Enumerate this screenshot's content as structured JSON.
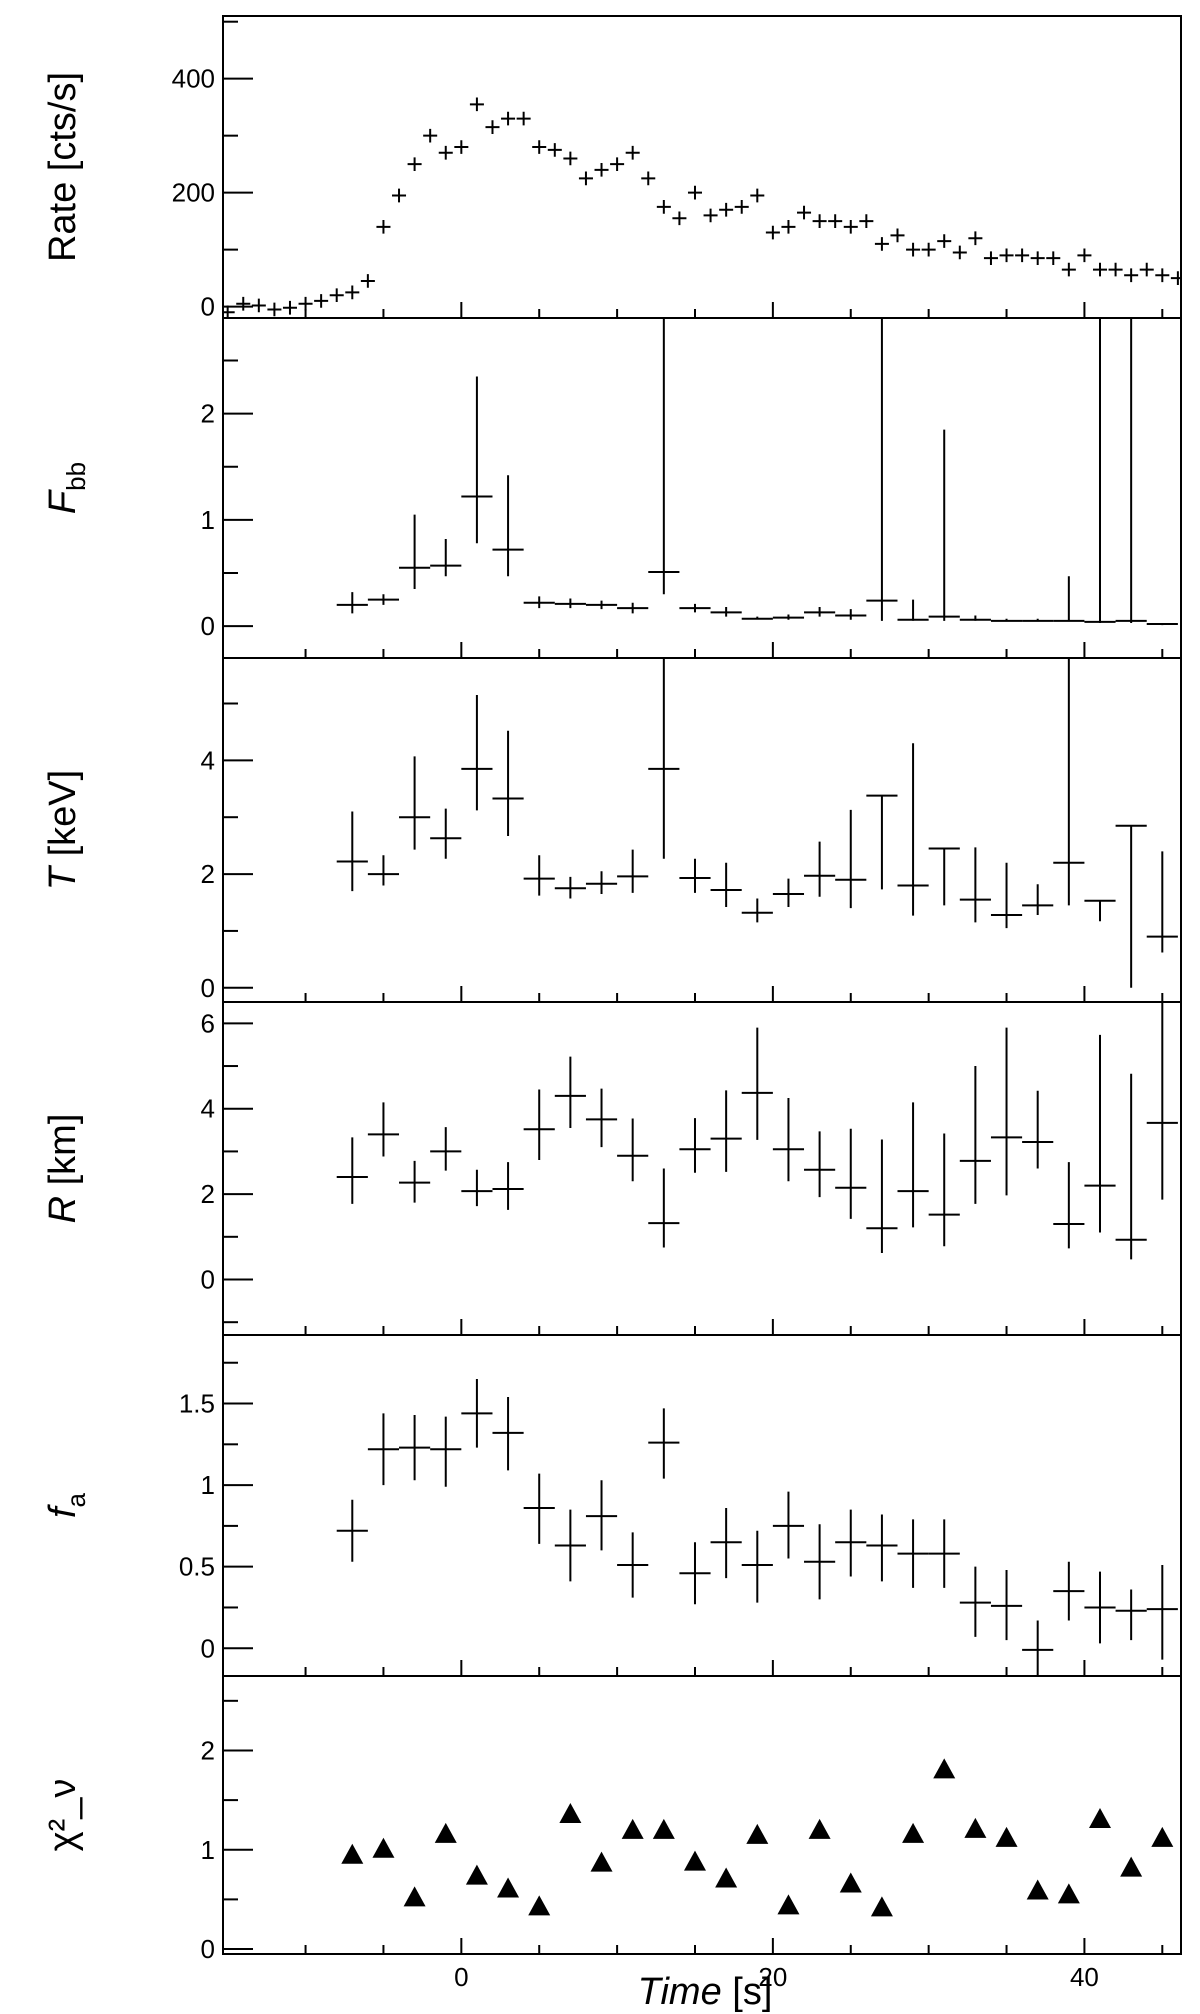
{
  "chart_data": [
    {
      "type": "scatter",
      "panel": "rate",
      "ylabel": "Rate [cts/s]",
      "ylim": [
        -20,
        510
      ],
      "yticks": [
        0,
        200,
        400
      ],
      "series": [
        {
          "marker": "cross",
          "x": [
            -15,
            -14,
            -13,
            -12,
            -11,
            -10,
            -9,
            -8,
            -7,
            -6,
            -5,
            -4,
            -3,
            -2,
            -1,
            0,
            1,
            2,
            3,
            4,
            5,
            6,
            7,
            8,
            9,
            10,
            11,
            12,
            13,
            14,
            15,
            16,
            17,
            18,
            19,
            20,
            21,
            22,
            23,
            24,
            25,
            26,
            27,
            28,
            29,
            30,
            31,
            32,
            33,
            34,
            35,
            36,
            37,
            38,
            39,
            40,
            41,
            42,
            43,
            44,
            45,
            46
          ],
          "y": [
            -10,
            5,
            2,
            -5,
            -2,
            5,
            10,
            20,
            25,
            45,
            140,
            195,
            250,
            300,
            270,
            280,
            355,
            315,
            330,
            330,
            280,
            275,
            260,
            225,
            240,
            250,
            270,
            225,
            175,
            155,
            200,
            160,
            170,
            175,
            195,
            130,
            140,
            165,
            150,
            150,
            140,
            150,
            110,
            125,
            100,
            100,
            115,
            95,
            120,
            85,
            90,
            90,
            85,
            85,
            65,
            90,
            65,
            65,
            55,
            65,
            55,
            50
          ]
        }
      ]
    },
    {
      "type": "scatter",
      "panel": "fbb",
      "ylabel": "F_bb",
      "ylim": [
        -0.3,
        2.9
      ],
      "yticks": [
        0,
        1,
        2
      ],
      "series": [
        {
          "marker": "cross",
          "x": [
            -7,
            -5,
            -3,
            -1,
            1,
            3,
            5,
            7,
            9,
            11,
            13,
            15,
            17,
            19,
            21,
            23,
            25,
            27,
            29,
            31,
            33,
            35,
            37,
            39,
            41,
            43,
            45
          ],
          "y": [
            0.2,
            0.25,
            0.55,
            0.57,
            1.22,
            0.72,
            0.22,
            0.21,
            0.2,
            0.17,
            0.51,
            0.17,
            0.13,
            0.07,
            0.08,
            0.13,
            0.1,
            0.24,
            0.06,
            0.09,
            0.06,
            0.05,
            0.05,
            0.05,
            0.04,
            0.05,
            0.02
          ],
          "ylo": [
            0.12,
            0.2,
            0.35,
            0.47,
            0.78,
            0.47,
            0.17,
            0.17,
            0.16,
            0.12,
            0.3,
            0.13,
            0.09,
            0.06,
            0.06,
            0.09,
            0.06,
            0.05,
            0.05,
            0.05,
            0.05,
            0.04,
            0.04,
            0.04,
            0.03,
            0.03,
            0.01
          ],
          "yhi": [
            0.32,
            0.3,
            1.05,
            0.82,
            2.35,
            1.42,
            0.28,
            0.26,
            0.24,
            0.22,
            2.9,
            0.21,
            0.18,
            0.09,
            0.11,
            0.18,
            0.16,
            2.9,
            0.25,
            1.85,
            0.1,
            0.07,
            0.07,
            0.47,
            2.9,
            2.9,
            0.03
          ]
        }
      ]
    },
    {
      "type": "scatter",
      "panel": "temperature",
      "ylabel": "T [keV]",
      "ylim": [
        -0.25,
        5.8
      ],
      "yticks": [
        0,
        2,
        4
      ],
      "series": [
        {
          "marker": "cross",
          "x": [
            -7,
            -5,
            -3,
            -1,
            1,
            3,
            5,
            7,
            9,
            11,
            13,
            15,
            17,
            19,
            21,
            23,
            25,
            27,
            29,
            31,
            33,
            35,
            37,
            39,
            41,
            43,
            45
          ],
          "y": [
            2.22,
            2.0,
            3.0,
            2.63,
            3.85,
            3.33,
            1.92,
            1.75,
            1.83,
            1.96,
            3.85,
            1.93,
            1.72,
            1.32,
            1.65,
            1.97,
            1.9,
            3.38,
            1.8,
            2.45,
            1.55,
            1.28,
            1.45,
            2.2,
            1.53,
            2.85,
            0.9
          ],
          "ylo": [
            1.7,
            1.8,
            2.43,
            2.27,
            3.12,
            2.67,
            1.62,
            1.57,
            1.65,
            1.67,
            2.27,
            1.67,
            1.42,
            1.15,
            1.42,
            1.6,
            1.4,
            1.73,
            1.27,
            1.45,
            1.15,
            1.05,
            1.28,
            1.45,
            1.17,
            0.0,
            0.62
          ],
          "yhi": [
            3.1,
            2.33,
            4.07,
            3.15,
            5.15,
            4.52,
            2.33,
            1.95,
            2.05,
            2.43,
            5.8,
            2.27,
            2.2,
            1.57,
            1.92,
            2.57,
            3.13,
            3.38,
            4.3,
            2.45,
            2.47,
            2.2,
            1.82,
            5.8,
            1.53,
            2.85,
            2.4
          ]
        }
      ]
    },
    {
      "type": "scatter",
      "panel": "radius",
      "ylabel": "R [km]",
      "ylim": [
        -1.3,
        6.5
      ],
      "yticks": [
        0,
        2,
        4,
        6
      ],
      "series": [
        {
          "marker": "cross",
          "x": [
            -7,
            -5,
            -3,
            -1,
            1,
            3,
            5,
            7,
            9,
            11,
            13,
            15,
            17,
            19,
            21,
            23,
            25,
            27,
            29,
            31,
            33,
            35,
            37,
            39,
            41,
            43,
            45
          ],
          "y": [
            2.4,
            3.4,
            2.27,
            3.0,
            2.07,
            2.12,
            3.52,
            4.3,
            3.75,
            2.9,
            1.32,
            3.05,
            3.3,
            4.37,
            3.05,
            2.57,
            2.15,
            1.2,
            2.07,
            1.52,
            2.78,
            3.33,
            3.22,
            1.3,
            2.2,
            0.93,
            3.67
          ],
          "ylo": [
            1.77,
            2.88,
            1.8,
            2.55,
            1.72,
            1.63,
            2.8,
            3.55,
            3.1,
            2.3,
            0.75,
            2.5,
            2.52,
            3.27,
            2.3,
            1.93,
            1.42,
            0.62,
            1.22,
            0.78,
            1.77,
            1.97,
            2.6,
            0.73,
            1.1,
            0.47,
            1.87
          ],
          "yhi": [
            3.33,
            4.15,
            2.78,
            3.57,
            2.57,
            2.75,
            4.45,
            5.22,
            4.47,
            3.77,
            2.6,
            3.78,
            4.43,
            5.9,
            4.25,
            3.47,
            3.53,
            3.28,
            4.15,
            3.42,
            5.0,
            5.9,
            4.42,
            2.75,
            5.73,
            4.82,
            6.5
          ]
        }
      ]
    },
    {
      "type": "scatter",
      "panel": "fa",
      "ylabel": "f_a",
      "ylim": [
        -0.17,
        1.92
      ],
      "yticks": [
        0,
        0.5,
        1,
        1.5
      ],
      "yticklabels": [
        "0",
        "0.5",
        "1",
        "1.5"
      ],
      "series": [
        {
          "marker": "cross",
          "x": [
            -7,
            -5,
            -3,
            -1,
            1,
            3,
            5,
            7,
            9,
            11,
            13,
            15,
            17,
            19,
            21,
            23,
            25,
            27,
            29,
            31,
            33,
            35,
            37,
            39,
            41,
            43,
            45
          ],
          "y": [
            0.72,
            1.22,
            1.23,
            1.22,
            1.44,
            1.32,
            0.86,
            0.63,
            0.81,
            0.51,
            1.26,
            0.46,
            0.65,
            0.51,
            0.75,
            0.53,
            0.65,
            0.63,
            0.58,
            0.58,
            0.28,
            0.26,
            -0.01,
            0.35,
            0.25,
            0.23,
            0.24
          ],
          "ylo": [
            0.53,
            1.0,
            1.03,
            0.99,
            1.23,
            1.09,
            0.64,
            0.41,
            0.6,
            0.31,
            1.04,
            0.27,
            0.43,
            0.28,
            0.55,
            0.3,
            0.44,
            0.41,
            0.37,
            0.37,
            0.07,
            0.05,
            -0.17,
            0.17,
            0.03,
            0.05,
            -0.07
          ],
          "yhi": [
            0.91,
            1.44,
            1.43,
            1.42,
            1.65,
            1.54,
            1.07,
            0.85,
            1.03,
            0.71,
            1.47,
            0.65,
            0.86,
            0.72,
            0.96,
            0.76,
            0.85,
            0.82,
            0.79,
            0.79,
            0.5,
            0.48,
            0.17,
            0.53,
            0.47,
            0.36,
            0.51
          ]
        }
      ]
    },
    {
      "type": "scatter",
      "panel": "chi2",
      "ylabel": "χ²_ν",
      "ylim": [
        -0.05,
        2.75
      ],
      "yticks": [
        0,
        1,
        2
      ],
      "series": [
        {
          "marker": "triangle",
          "x": [
            -7,
            -5,
            -3,
            -1,
            1,
            3,
            5,
            7,
            9,
            11,
            13,
            15,
            17,
            19,
            21,
            23,
            25,
            27,
            29,
            31,
            33,
            35,
            37,
            39,
            41,
            43,
            45
          ],
          "y": [
            0.95,
            1.01,
            0.52,
            1.16,
            0.74,
            0.61,
            0.43,
            1.36,
            0.87,
            1.2,
            1.2,
            0.88,
            0.71,
            1.15,
            0.44,
            1.2,
            0.66,
            0.42,
            1.16,
            1.81,
            1.21,
            1.12,
            0.59,
            0.55,
            1.31,
            0.82,
            1.12
          ]
        }
      ]
    }
  ],
  "xaxis": {
    "label": "Time [s]",
    "xlim": [
      -15.3,
      46.2
    ],
    "ticks": [
      0,
      20,
      40
    ]
  }
}
